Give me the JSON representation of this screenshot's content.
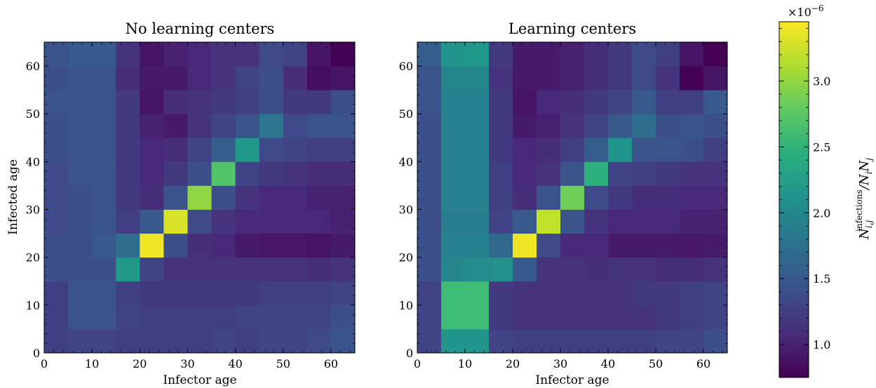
{
  "colormap": "viridis",
  "chart_data": [
    {
      "type": "heatmap",
      "title": "No learning centers",
      "xlabel": "Infector age",
      "ylabel": "Infected age",
      "xlim": [
        0,
        65
      ],
      "ylim": [
        0,
        65
      ],
      "x_ticks": [
        0,
        10,
        20,
        30,
        40,
        50,
        60
      ],
      "y_ticks": [
        0,
        10,
        20,
        30,
        40,
        50,
        60
      ],
      "bin_edges": [
        0,
        5,
        10,
        15,
        20,
        25,
        30,
        35,
        40,
        45,
        50,
        55,
        60,
        65
      ],
      "values_note": "row 0 = infected age 0-5 (bottom), col 0 = infector age 0-5 (left); values x1e-6",
      "values": [
        [
          1.25,
          1.3,
          1.3,
          1.25,
          1.25,
          1.25,
          1.25,
          1.3,
          1.25,
          1.3,
          1.3,
          1.35,
          1.45
        ],
        [
          1.25,
          1.45,
          1.45,
          1.3,
          1.25,
          1.25,
          1.25,
          1.25,
          1.3,
          1.3,
          1.3,
          1.3,
          1.4
        ],
        [
          1.25,
          1.45,
          1.45,
          1.25,
          1.2,
          1.2,
          1.2,
          1.2,
          1.2,
          1.25,
          1.25,
          1.25,
          1.3
        ],
        [
          1.4,
          1.4,
          1.4,
          2.2,
          1.3,
          1.15,
          1.15,
          1.15,
          1.15,
          1.15,
          1.15,
          1.1,
          1.15
        ],
        [
          1.4,
          1.4,
          1.5,
          1.7,
          3.4,
          1.4,
          1.1,
          1.05,
          0.95,
          0.92,
          0.92,
          0.88,
          0.95
        ],
        [
          1.35,
          1.4,
          1.45,
          1.25,
          1.5,
          3.3,
          1.35,
          1.15,
          1.05,
          1.05,
          1.05,
          1.05,
          1.0
        ],
        [
          1.35,
          1.4,
          1.45,
          1.2,
          1.1,
          1.45,
          3.0,
          1.4,
          1.15,
          1.05,
          1.05,
          1.0,
          1.0
        ],
        [
          1.35,
          1.45,
          1.45,
          1.2,
          1.05,
          1.2,
          1.4,
          2.7,
          1.3,
          1.2,
          1.15,
          1.1,
          1.1
        ],
        [
          1.4,
          1.45,
          1.45,
          1.2,
          1.05,
          1.1,
          1.3,
          1.55,
          2.2,
          1.35,
          1.3,
          1.25,
          1.25
        ],
        [
          1.4,
          1.45,
          1.45,
          1.2,
          1.0,
          0.95,
          1.15,
          1.3,
          1.45,
          1.8,
          1.35,
          1.45,
          1.45
        ],
        [
          1.45,
          1.45,
          1.45,
          1.2,
          0.9,
          1.1,
          1.15,
          1.2,
          1.25,
          1.4,
          1.2,
          1.2,
          1.4
        ],
        [
          1.4,
          1.45,
          1.45,
          1.1,
          0.95,
          0.95,
          1.05,
          1.15,
          1.3,
          1.4,
          1.1,
          0.85,
          0.9
        ],
        [
          1.45,
          1.5,
          1.5,
          1.15,
          0.9,
          1.0,
          1.05,
          1.15,
          1.15,
          1.35,
          1.3,
          0.9,
          0.75
        ]
      ]
    },
    {
      "type": "heatmap",
      "title": "Learning centers",
      "xlabel": "Infector age",
      "ylabel": "",
      "xlim": [
        0,
        65
      ],
      "ylim": [
        0,
        65
      ],
      "x_ticks": [
        0,
        10,
        20,
        30,
        40,
        50,
        60
      ],
      "y_ticks": [
        0,
        10,
        20,
        30,
        40,
        50,
        60
      ],
      "bin_edges": [
        0,
        5,
        10,
        15,
        20,
        25,
        30,
        35,
        40,
        45,
        50,
        55,
        60,
        65
      ],
      "values_note": "row 0 = infected age 0-5 (bottom), col 0 = infector age 0-5 (left); values x1e-6",
      "values": [
        [
          1.3,
          2.15,
          2.15,
          1.3,
          1.25,
          1.25,
          1.25,
          1.25,
          1.25,
          1.25,
          1.3,
          1.3,
          1.4
        ],
        [
          1.3,
          2.6,
          2.6,
          1.2,
          1.15,
          1.15,
          1.15,
          1.15,
          1.15,
          1.15,
          1.2,
          1.25,
          1.3
        ],
        [
          1.3,
          2.6,
          2.6,
          1.2,
          1.15,
          1.15,
          1.15,
          1.15,
          1.15,
          1.2,
          1.2,
          1.25,
          1.3
        ],
        [
          1.4,
          2.0,
          2.05,
          2.1,
          1.5,
          1.15,
          1.15,
          1.1,
          1.15,
          1.15,
          1.1,
          1.1,
          1.15
        ],
        [
          1.4,
          1.95,
          1.95,
          1.65,
          3.4,
          1.35,
          1.05,
          1.05,
          0.95,
          0.95,
          0.95,
          0.92,
          0.95
        ],
        [
          1.4,
          1.9,
          1.9,
          1.3,
          1.5,
          3.2,
          1.45,
          1.15,
          1.05,
          1.05,
          1.05,
          1.0,
          1.0
        ],
        [
          1.4,
          1.95,
          1.95,
          1.25,
          1.1,
          1.45,
          2.85,
          1.35,
          1.2,
          1.1,
          1.1,
          1.05,
          1.05
        ],
        [
          1.4,
          1.95,
          1.95,
          1.25,
          1.05,
          1.15,
          1.45,
          2.45,
          1.3,
          1.25,
          1.2,
          1.15,
          1.15
        ],
        [
          1.4,
          1.95,
          1.95,
          1.2,
          1.05,
          1.1,
          1.25,
          1.55,
          2.15,
          1.45,
          1.45,
          1.4,
          1.25
        ],
        [
          1.4,
          1.95,
          1.95,
          1.2,
          0.95,
          1.0,
          1.15,
          1.3,
          1.5,
          1.7,
          1.4,
          1.45,
          1.4
        ],
        [
          1.45,
          1.95,
          1.95,
          1.2,
          0.9,
          1.05,
          1.1,
          1.2,
          1.3,
          1.5,
          1.25,
          1.25,
          1.5
        ],
        [
          1.45,
          2.0,
          2.0,
          1.15,
          0.95,
          0.95,
          1.0,
          1.1,
          1.2,
          1.35,
          1.15,
          0.75,
          0.9
        ],
        [
          1.55,
          2.15,
          2.2,
          1.2,
          0.95,
          0.95,
          1.0,
          1.1,
          1.2,
          1.35,
          1.25,
          0.9,
          0.75
        ]
      ]
    }
  ],
  "colorbar": {
    "label_main": "N",
    "label_sub": "i,j",
    "label_sup": "infections",
    "label_tail": "/N",
    "label_tail_sub1": "i",
    "label_tail_mid": "N",
    "label_tail_sub2": "j",
    "multiplier_base": "×10",
    "multiplier_exp": "−6",
    "vmin": 0.75,
    "vmax": 3.45,
    "ticks": [
      1.0,
      1.5,
      2.0,
      2.5,
      3.0
    ],
    "tick_labels": [
      "1.0",
      "1.5",
      "2.0",
      "2.5",
      "3.0"
    ]
  }
}
